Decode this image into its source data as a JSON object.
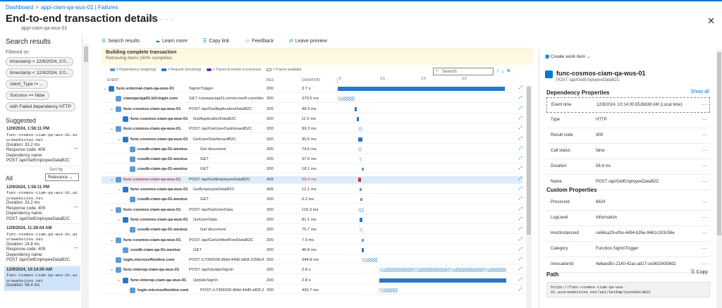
{
  "breadcrumb": {
    "items": [
      "Dashboard",
      "appi-ciam-qa-wus-01 | Failures"
    ]
  },
  "page": {
    "title": "End-to-end transaction details",
    "subtitle": "appi-ciam-qa-wus-01"
  },
  "left": {
    "heading": "Search results",
    "filtered_on": "Filtered on",
    "filters": [
      "timestamp > 12/8/2024, 3:0...",
      "timestamp < 12/9/2024, 3:0...",
      "client_Type != ...",
      "Success == false",
      "with Failed dependency HTTP"
    ],
    "suggested_label": "Suggested",
    "suggested": [
      {
        "date": "12/9/2024, 1:56:11 PM",
        "host1": "func-cosmos-ciam-qa-wus-01.az",
        "host2": "urewebsites.net",
        "duration": "Duration: 33.2 ms",
        "code": "Response code: 409",
        "dep": "Dependency name:",
        "name": "POST /api/GetEmployeeDataB2C"
      }
    ],
    "all_label": "All",
    "sort_label": "Sort by",
    "sort_value": "Relevance",
    "all": [
      {
        "date": "12/9/2024, 1:56:11 PM",
        "host1": "func-cosmos-ciam-qa-wus-01.az",
        "host2": "urewebsites.net",
        "duration": "Duration: 33.2 ms",
        "code": "Response code: 409",
        "dep": "Dependency name:",
        "name": "POST /api/GetEmployeeDataB2C"
      },
      {
        "date": "12/9/2024, 11:26:04 AM",
        "host1": "func-cosmos-ciam-qa-wus-01.az",
        "host2": "urewebsites.net",
        "duration": "Duration: 24.8 ms",
        "code": "Response code: 409",
        "dep": "Dependency name:",
        "name": "POST /api/GetEmployeeDataB2C"
      },
      {
        "date": "12/9/2024, 10:14:00 AM",
        "host1": "func-cosmos-ciam-qa-wus-01.az",
        "host2": "urewebsites.net",
        "duration": "Duration: 58.4 ms",
        "code": "",
        "dep": "",
        "name": ""
      }
    ]
  },
  "toolbar": {
    "search": "Search results",
    "learn": "Learn more",
    "copy": "Copy link",
    "feedback": "Feedback",
    "leave": "Leave preview"
  },
  "banner": {
    "line1": "Building complete transaction",
    "line2": "Retrieving items (50% complete)"
  },
  "legend": [
    "= Dependency (outgoing)",
    "= Request (incoming)",
    "= Traces & events occurrences",
    "= Traces available"
  ],
  "search_placeholder": "Search",
  "columns": {
    "event": "EVENT",
    "res": "RES.",
    "duration": "DURATION"
  },
  "ticks": [
    "0",
    "1.5",
    "2.5",
    "3.5"
  ],
  "rows": [
    {
      "indent": 0,
      "caret": "v",
      "name": "func-external-ciam-qa-wus-01",
      "action": "SignInTrigger",
      "res": "200",
      "dur": "3.7 s",
      "type": "req",
      "start": 0,
      "len": 0.97,
      "hatch": false,
      "red": false
    },
    {
      "indent": 1,
      "caret": "",
      "name": "ciamqaciqa01.b2clogin.com",
      "action": "GET /ciamqaciqa01.onmicrosoft.com/discov",
      "res": "200",
      "dur": "379.5 ms",
      "type": "dep",
      "start": 0,
      "len": 0.1,
      "hatch": true,
      "red": false
    },
    {
      "indent": 1,
      "caret": "v",
      "name": "func-cosmos-ciam-qa-wus-01",
      "action": "POST /api/GetApplicationDataB2C",
      "res": "200",
      "dur": "48.3 ms",
      "type": "dep",
      "start": 0.1,
      "len": 0.01,
      "hatch": false,
      "red": false
    },
    {
      "indent": 2,
      "caret": "",
      "name": "func-cosmos-ciam-qa-wus-01",
      "action": "GetApplicationDataB2C",
      "res": "200",
      "dur": "11.6 ms",
      "type": "req",
      "start": 0.11,
      "len": 0.01,
      "hatch": false,
      "red": false
    },
    {
      "indent": 1,
      "caret": "v",
      "name": "func-cosmos-ciam-qa-wus-01",
      "action": "POST /api/GetUserDashboardB2C",
      "res": "200",
      "dur": "99.3 ms",
      "type": "dep",
      "start": 0.12,
      "len": 0.025,
      "hatch": true,
      "red": false
    },
    {
      "indent": 2,
      "caret": "v",
      "name": "func-cosmos-ciam-qa-wus-01",
      "action": "GetUserDashboardB2C",
      "res": "200",
      "dur": "95.5 ms",
      "type": "req",
      "start": 0.12,
      "len": 0.025,
      "hatch": false,
      "red": false
    },
    {
      "indent": 3,
      "caret": "",
      "name": "cosdb-ciam-qa-01-westus",
      "action": "Get document",
      "res": "200",
      "dur": "74.5 ms",
      "type": "dep",
      "start": 0.12,
      "len": 0.02,
      "hatch": true,
      "red": false
    },
    {
      "indent": 3,
      "caret": "",
      "name": "cosdb-ciam-qa-01-westus",
      "action": "GET",
      "res": "200",
      "dur": "37.0 ms",
      "type": "dep",
      "start": 0.125,
      "len": 0.01,
      "hatch": true,
      "red": false
    },
    {
      "indent": 3,
      "caret": "",
      "name": "cosdb-ciam-qa-01-westus",
      "action": "GET",
      "res": "200",
      "dur": "18.1 ms",
      "type": "dep",
      "start": 0.14,
      "len": 0.005,
      "hatch": false,
      "red": false
    },
    {
      "indent": 1,
      "caret": "v",
      "name": "func-cosmos-ciam-qa-wus-01",
      "action": "POST /api/GetEmployeeDataB2C",
      "res": "409",
      "dur": "58.4 ms",
      "type": "dep",
      "start": 0.12,
      "len": 0.015,
      "hatch": false,
      "red": true
    },
    {
      "indent": 2,
      "caret": "v",
      "name": "func-cosmos-ciam-qa-wus-01",
      "action": "GetEmployeeDataB2C",
      "res": "409",
      "dur": "12.1 ms",
      "type": "req",
      "start": 0.125,
      "len": 0.005,
      "hatch": false,
      "red": false
    },
    {
      "indent": 3,
      "caret": "",
      "name": "cosdb-ciam-qa-01-westus",
      "action": "GET",
      "res": "200",
      "dur": "6.2 ms",
      "type": "dep",
      "start": 0.13,
      "len": 0.005,
      "hatch": false,
      "red": false
    },
    {
      "indent": 1,
      "caret": "v",
      "name": "func-cosmos-ciam-qa-wus-01",
      "action": "POST /api/GetUserData",
      "res": "200",
      "dur": "119.3 ms",
      "type": "dep",
      "start": 0.12,
      "len": 0.03,
      "hatch": true,
      "red": false
    },
    {
      "indent": 2,
      "caret": "v",
      "name": "func-cosmos-ciam-qa-wus-01",
      "action": "GetUserData",
      "res": "200",
      "dur": "81.1 ms",
      "type": "req",
      "start": 0.125,
      "len": 0.02,
      "hatch": false,
      "red": false
    },
    {
      "indent": 3,
      "caret": "",
      "name": "cosdb-ciam-qa-01-westus",
      "action": "Get document",
      "res": "200",
      "dur": "75.7 ms",
      "type": "dep",
      "start": 0.125,
      "len": 0.02,
      "hatch": true,
      "red": false
    },
    {
      "indent": 1,
      "caret": "v",
      "name": "func-cosmos-ciam-qa-wus-01",
      "action": "POST /api/GetUnifiedFlowDataB2C",
      "res": "200",
      "dur": "7.0 ms",
      "type": "dep",
      "start": 0.14,
      "len": 0.003,
      "hatch": false,
      "red": false
    },
    {
      "indent": 2,
      "caret": "",
      "name": "cosdb-ciam-qa-01-westus",
      "action": "GET",
      "res": "200",
      "dur": "46.8 ms",
      "type": "dep",
      "start": 0.14,
      "len": 0.012,
      "hatch": false,
      "red": false
    },
    {
      "indent": 1,
      "caret": "",
      "name": "login.microsoftonline.com",
      "action": "POST /c7396536-8bfd-44d5-b82f-2258c40a",
      "res": "200",
      "dur": "344.8 ms",
      "type": "dep",
      "start": 0.14,
      "len": 0.09,
      "hatch": true,
      "red": false
    },
    {
      "indent": 1,
      "caret": "v",
      "name": "func-interop-ciam-qa-wus-01",
      "action": "POST /api/UpdateSignIn",
      "res": "200",
      "dur": "2.8 s",
      "type": "dep",
      "start": 0.24,
      "len": 0.74,
      "hatch": true,
      "red": false
    },
    {
      "indent": 2,
      "caret": "v",
      "name": "func-interop-ciam-qa-wus-01",
      "action": "UpdateSignIn",
      "res": "200",
      "dur": "2.8 s",
      "type": "req",
      "start": 0.24,
      "len": 0.74,
      "hatch": false,
      "red": false
    },
    {
      "indent": 3,
      "caret": "",
      "name": "login.microsoftonline.com",
      "action": "POST /c7396536-8bfd-44d5-b82f-2258c",
      "res": "200",
      "dur": "420.7 ms",
      "type": "dep",
      "start": 0.24,
      "len": 0.11,
      "hatch": true,
      "red": false
    }
  ],
  "detail": {
    "create_work_item": "Create work item",
    "name": "func-cosmos-ciam-qa-wus-01",
    "sub": "POST /api/GetEmployeeDataB2C",
    "dep_heading": "Dependency Properties",
    "show_all": "Show all",
    "dep_props": [
      {
        "k": "Event time",
        "v": "12/9/2024, 10:14:00.6526838 AM (Local time)"
      },
      {
        "k": "Type",
        "v": "HTTP"
      },
      {
        "k": "Result code",
        "v": "409"
      },
      {
        "k": "Call status",
        "v": "false"
      },
      {
        "k": "Duration",
        "v": "58.4 ms"
      },
      {
        "k": "Name",
        "v": "POST /api/GetEmployeeDataB2C"
      }
    ],
    "custom_heading": "Custom Properties",
    "custom_props": [
      {
        "k": "ProcessId",
        "v": "8824"
      },
      {
        "k": "LogLevel",
        "v": "Information"
      },
      {
        "k": "HostInstanceId",
        "v": "ce66ca29-ef0e-4494-b35e-9461c333c56e"
      },
      {
        "k": "Category",
        "v": "Function.SignInTrigger"
      },
      {
        "k": "InvocationId",
        "v": "4e6aed5c-2140-42ac-ad17-ced6334308d2"
      }
    ],
    "path_heading": "Path",
    "copy": "Copy",
    "path1": "https://func-cosmos-ciam-qa-wus-",
    "path2": "01.azurewebsites.net/api/GetEmployeeDataB2C"
  },
  "colors": {
    "accent": "#0078d4",
    "error": "#d13438",
    "request": "#6b2fa6"
  }
}
